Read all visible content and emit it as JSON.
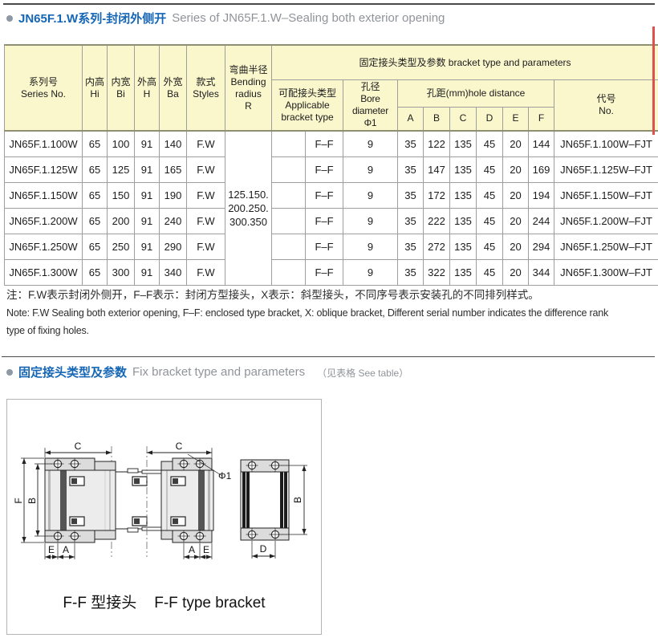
{
  "colors": {
    "accent_blue": "#1566b5",
    "subtitle_gray": "#909499",
    "table_header_bg": "#faf7cd",
    "border_gray": "#9e9e9e",
    "border_heavy": "#8f8f72",
    "red_edge_mark": "#e0514d"
  },
  "section1": {
    "title_zh": "JN65F.1.W系列-封闭外侧开",
    "title_en": "Series of JN65F.1.W–Sealing both exterior opening"
  },
  "table": {
    "headers": {
      "series": "系列号\nSeries No.",
      "hi": "内高\nHi",
      "bi": "内宽\nBi",
      "h": "外高\nH",
      "ba": "外宽\nBa",
      "styles": "款式\nStyles",
      "bending": "弯曲半径\nBending\nradius\nR",
      "group": "固定接头类型及参数 bracket type and parameters",
      "applicable": "可配接头类型\nApplicable\nbracket type",
      "bore": "孔径\nBore diameter\nΦ1",
      "hole_distance": "孔距(mm)hole distance",
      "hole_cols": [
        "A",
        "B",
        "C",
        "D",
        "E",
        "F"
      ],
      "code": "代号\nNo."
    },
    "bending_radius": "125.150.\n200.250.\n300.350",
    "rows": [
      {
        "series": "JN65F.1.100W",
        "hi": "65",
        "bi": "100",
        "h": "91",
        "ba": "140",
        "style": "F.W",
        "bracket": "F–F",
        "bore": "9",
        "a": "35",
        "b": "122",
        "c": "135",
        "d": "45",
        "e": "20",
        "f": "144",
        "code": "JN65F.1.100W–FJT"
      },
      {
        "series": "JN65F.1.125W",
        "hi": "65",
        "bi": "125",
        "h": "91",
        "ba": "165",
        "style": "F.W",
        "bracket": "F–F",
        "bore": "9",
        "a": "35",
        "b": "147",
        "c": "135",
        "d": "45",
        "e": "20",
        "f": "169",
        "code": "JN65F.1.125W–FJT"
      },
      {
        "series": "JN65F.1.150W",
        "hi": "65",
        "bi": "150",
        "h": "91",
        "ba": "190",
        "style": "F.W",
        "bracket": "F–F",
        "bore": "9",
        "a": "35",
        "b": "172",
        "c": "135",
        "d": "45",
        "e": "20",
        "f": "194",
        "code": "JN65F.1.150W–FJT"
      },
      {
        "series": "JN65F.1.200W",
        "hi": "65",
        "bi": "200",
        "h": "91",
        "ba": "240",
        "style": "F.W",
        "bracket": "F–F",
        "bore": "9",
        "a": "35",
        "b": "222",
        "c": "135",
        "d": "45",
        "e": "20",
        "f": "244",
        "code": "JN65F.1.200W–FJT"
      },
      {
        "series": "JN65F.1.250W",
        "hi": "65",
        "bi": "250",
        "h": "91",
        "ba": "290",
        "style": "F.W",
        "bracket": "F–F",
        "bore": "9",
        "a": "35",
        "b": "272",
        "c": "135",
        "d": "45",
        "e": "20",
        "f": "294",
        "code": "JN65F.1.250W–FJT"
      },
      {
        "series": "JN65F.1.300W",
        "hi": "65",
        "bi": "300",
        "h": "91",
        "ba": "340",
        "style": "F.W",
        "bracket": "F–F",
        "bore": "9",
        "a": "35",
        "b": "322",
        "c": "135",
        "d": "45",
        "e": "20",
        "f": "344",
        "code": "JN65F.1.300W–FJT"
      }
    ]
  },
  "note": {
    "zh": "注：F.W表示封闭外侧开，F–F表示：封闭方型接头，X表示：斜型接头，不同序号表示安装孔的不同排列样式。",
    "en": "Note: F.W Sealing both exterior opening, F–F: enclosed type bracket, X: oblique bracket, Different serial number indicates the difference rank\ntype of fixing holes."
  },
  "section2": {
    "title_zh": "固定接头类型及参数",
    "title_en": "Fix bracket type and parameters",
    "hint": "（见表格 See table）"
  },
  "drawing": {
    "caption_zh": "F-F 型接头",
    "caption_en": "F-F type bracket",
    "dims": {
      "c_left": "C",
      "c_right": "C",
      "phi": "Φ1",
      "f": "F",
      "b_front": "B",
      "e_left": "E",
      "a_left": "A",
      "a_right": "A",
      "e_right": "E",
      "b_side": "B",
      "d": "D"
    }
  }
}
